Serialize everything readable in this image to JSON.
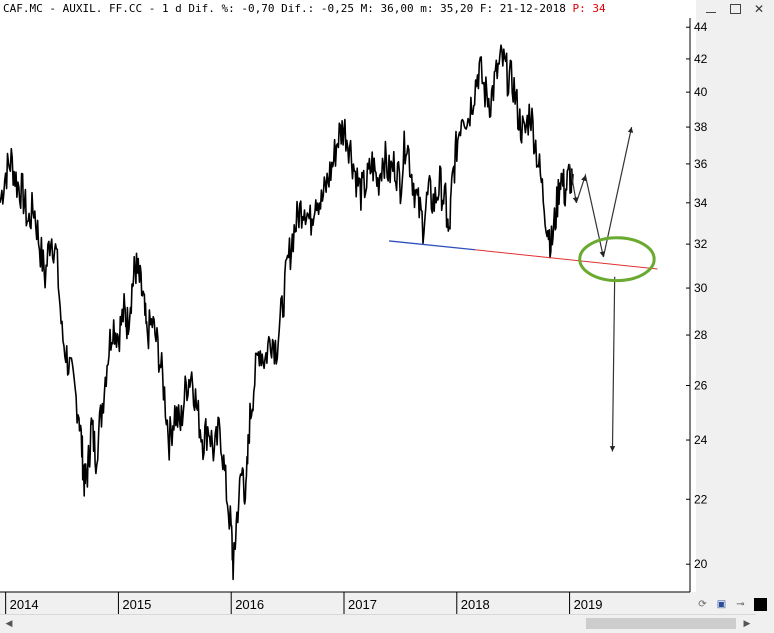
{
  "header": {
    "text": "CAF.MC - AUXIL. FF.CC -  1 d Dif. %: -0,70 Dif.: -0,25 M: 36,00 m: 35,20 F: 21-12-2018",
    "highlight": "P: 34"
  },
  "window_controls": {
    "minimize_icon": "minimize-icon",
    "maximize_icon": "maximize-icon",
    "close_label": "✕"
  },
  "bottom_tools": {
    "refresh_icon": "refresh-icon",
    "save_icon": "save-icon",
    "pin_icon": "pin-icon",
    "color_icon": "color-square-icon"
  },
  "chart_data": {
    "type": "line",
    "y_scale": "log",
    "ylim": [
      19.2,
      44.6
    ],
    "y_ticks": [
      20,
      22,
      24,
      26,
      28,
      30,
      32,
      34,
      36,
      38,
      40,
      42,
      44
    ],
    "x_ticks": [
      "2014",
      "2015",
      "2016",
      "2017",
      "2018",
      "2019"
    ],
    "x_range": [
      2013.95,
      2020.05
    ],
    "price_series": {
      "name": "",
      "color": "#000000",
      "points": [
        [
          2013.95,
          34.0
        ],
        [
          2014.0,
          35.5
        ],
        [
          2014.05,
          36.2
        ],
        [
          2014.1,
          35.0
        ],
        [
          2014.15,
          34.5
        ],
        [
          2014.2,
          33.0
        ],
        [
          2014.25,
          33.8
        ],
        [
          2014.3,
          32.0
        ],
        [
          2014.35,
          30.5
        ],
        [
          2014.4,
          32.5
        ],
        [
          2014.45,
          31.5
        ],
        [
          2014.5,
          28.0
        ],
        [
          2014.55,
          27.0
        ],
        [
          2014.6,
          26.0
        ],
        [
          2014.65,
          25.0
        ],
        [
          2014.68,
          23.5
        ],
        [
          2014.7,
          22.5
        ],
        [
          2014.73,
          23.0
        ],
        [
          2014.76,
          24.5
        ],
        [
          2014.8,
          23.5
        ],
        [
          2014.85,
          25.0
        ],
        [
          2014.9,
          27.0
        ],
        [
          2014.95,
          28.5
        ],
        [
          2015.0,
          28.0
        ],
        [
          2015.05,
          29.0
        ],
        [
          2015.08,
          28.5
        ],
        [
          2015.12,
          30.0
        ],
        [
          2015.15,
          31.0
        ],
        [
          2015.18,
          30.5
        ],
        [
          2015.22,
          29.5
        ],
        [
          2015.25,
          28.0
        ],
        [
          2015.3,
          28.5
        ],
        [
          2015.35,
          27.5
        ],
        [
          2015.4,
          26.0
        ],
        [
          2015.45,
          24.0
        ],
        [
          2015.5,
          25.0
        ],
        [
          2015.55,
          24.5
        ],
        [
          2015.6,
          26.0
        ],
        [
          2015.65,
          26.5
        ],
        [
          2015.7,
          25.0
        ],
        [
          2015.75,
          24.0
        ],
        [
          2015.8,
          24.5
        ],
        [
          2015.85,
          23.5
        ],
        [
          2015.9,
          24.5
        ],
        [
          2015.95,
          22.5
        ],
        [
          2016.0,
          21.0
        ],
        [
          2016.02,
          19.8
        ],
        [
          2016.05,
          21.5
        ],
        [
          2016.1,
          23.0
        ],
        [
          2016.13,
          22.0
        ],
        [
          2016.16,
          24.5
        ],
        [
          2016.2,
          26.0
        ],
        [
          2016.25,
          27.5
        ],
        [
          2016.3,
          27.0
        ],
        [
          2016.35,
          28.0
        ],
        [
          2016.4,
          27.5
        ],
        [
          2016.45,
          29.0
        ],
        [
          2016.5,
          31.0
        ],
        [
          2016.55,
          32.5
        ],
        [
          2016.6,
          33.5
        ],
        [
          2016.65,
          34.0
        ],
        [
          2016.7,
          33.0
        ],
        [
          2016.75,
          34.5
        ],
        [
          2016.8,
          34.0
        ],
        [
          2016.85,
          35.0
        ],
        [
          2016.9,
          36.0
        ],
        [
          2016.95,
          37.5
        ],
        [
          2017.0,
          38.0
        ],
        [
          2017.05,
          37.0
        ],
        [
          2017.1,
          35.5
        ],
        [
          2017.15,
          34.5
        ],
        [
          2017.2,
          35.0
        ],
        [
          2017.25,
          36.0
        ],
        [
          2017.3,
          35.0
        ],
        [
          2017.35,
          36.5
        ],
        [
          2017.4,
          35.5
        ],
        [
          2017.45,
          36.0
        ],
        [
          2017.5,
          35.0
        ],
        [
          2017.55,
          37.5
        ],
        [
          2017.6,
          35.5
        ],
        [
          2017.65,
          34.0
        ],
        [
          2017.7,
          33.0
        ],
        [
          2017.75,
          34.5
        ],
        [
          2017.8,
          34.0
        ],
        [
          2017.85,
          35.0
        ],
        [
          2017.9,
          34.0
        ],
        [
          2017.93,
          32.2
        ],
        [
          2017.96,
          35.0
        ],
        [
          2018.0,
          37.0
        ],
        [
          2018.05,
          39.0
        ],
        [
          2018.1,
          38.5
        ],
        [
          2018.15,
          40.0
        ],
        [
          2018.2,
          41.5
        ],
        [
          2018.25,
          40.0
        ],
        [
          2018.3,
          39.5
        ],
        [
          2018.35,
          41.0
        ],
        [
          2018.4,
          42.0
        ],
        [
          2018.45,
          41.0
        ],
        [
          2018.5,
          40.5
        ],
        [
          2018.55,
          38.5
        ],
        [
          2018.6,
          37.5
        ],
        [
          2018.65,
          39.0
        ],
        [
          2018.7,
          37.0
        ],
        [
          2018.75,
          35.0
        ],
        [
          2018.8,
          33.0
        ],
        [
          2018.84,
          32.0
        ],
        [
          2018.88,
          33.5
        ],
        [
          2018.92,
          35.5
        ],
        [
          2018.96,
          34.5
        ],
        [
          2019.0,
          35.5
        ],
        [
          2019.03,
          34.5
        ]
      ]
    },
    "trendline": {
      "color_blue": "#3050c0",
      "color_red": "#e03030",
      "x": [
        2017.4,
        2019.78
      ],
      "y": [
        32.15,
        30.85
      ]
    },
    "annotation_path": {
      "color": "#333333",
      "points": [
        [
          2019.0,
          36.0
        ],
        [
          2019.06,
          34.0
        ],
        [
          2019.14,
          35.4
        ],
        [
          2019.3,
          31.4
        ],
        [
          2019.55,
          38.0
        ]
      ]
    },
    "annotation_drop": {
      "color": "#333333",
      "from": [
        2019.4,
        30.5
      ],
      "to": [
        2019.38,
        23.6
      ]
    },
    "ellipse": {
      "color": "#6aaa30",
      "center": [
        2019.42,
        31.3
      ],
      "rx_years": 0.33,
      "ry_value": 1.0
    }
  }
}
